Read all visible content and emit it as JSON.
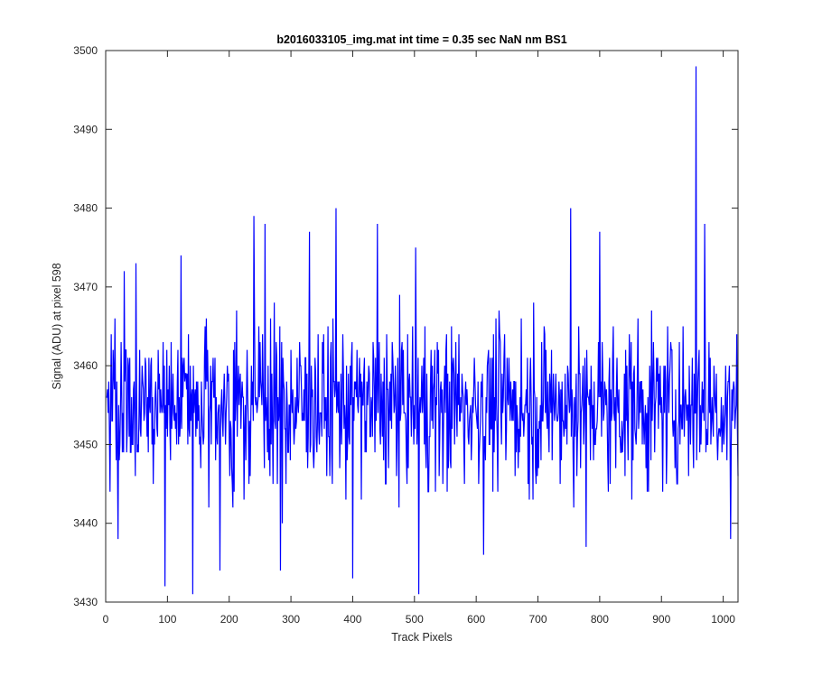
{
  "chart_data": {
    "type": "line",
    "title": "b2016033105_img.mat int time = 0.35 sec  NaN nm BS1",
    "xlabel": "Track Pixels",
    "ylabel": "Signal (ADU) at pixel 598",
    "xlim": [
      0,
      1024
    ],
    "ylim": [
      3430,
      3500
    ],
    "xticks": [
      0,
      100,
      200,
      300,
      400,
      500,
      600,
      700,
      800,
      900,
      1000
    ],
    "yticks": [
      3430,
      3440,
      3450,
      3460,
      3470,
      3480,
      3490,
      3500
    ],
    "grid": false,
    "line_color": "#0000ff",
    "series": [
      {
        "noise": {
          "n_points": 1024,
          "x_start": 1,
          "center": 3455,
          "std": 7,
          "min_clip": 3431,
          "max_clip": 3481
        },
        "highlights": [
          {
            "x": 20,
            "y": 3438
          },
          {
            "x": 30,
            "y": 3472
          },
          {
            "x": 49,
            "y": 3473
          },
          {
            "x": 96,
            "y": 3432
          },
          {
            "x": 122,
            "y": 3474
          },
          {
            "x": 141,
            "y": 3431
          },
          {
            "x": 185,
            "y": 3434
          },
          {
            "x": 240,
            "y": 3479
          },
          {
            "x": 258,
            "y": 3478
          },
          {
            "x": 283,
            "y": 3434
          },
          {
            "x": 330,
            "y": 3477
          },
          {
            "x": 373,
            "y": 3480
          },
          {
            "x": 400,
            "y": 3433
          },
          {
            "x": 440,
            "y": 3478
          },
          {
            "x": 507,
            "y": 3431
          },
          {
            "x": 502,
            "y": 3475
          },
          {
            "x": 612,
            "y": 3436
          },
          {
            "x": 753,
            "y": 3480
          },
          {
            "x": 778,
            "y": 3437
          },
          {
            "x": 800,
            "y": 3477
          },
          {
            "x": 956,
            "y": 3498
          },
          {
            "x": 970,
            "y": 3478
          },
          {
            "x": 1012,
            "y": 3438
          }
        ]
      }
    ]
  }
}
